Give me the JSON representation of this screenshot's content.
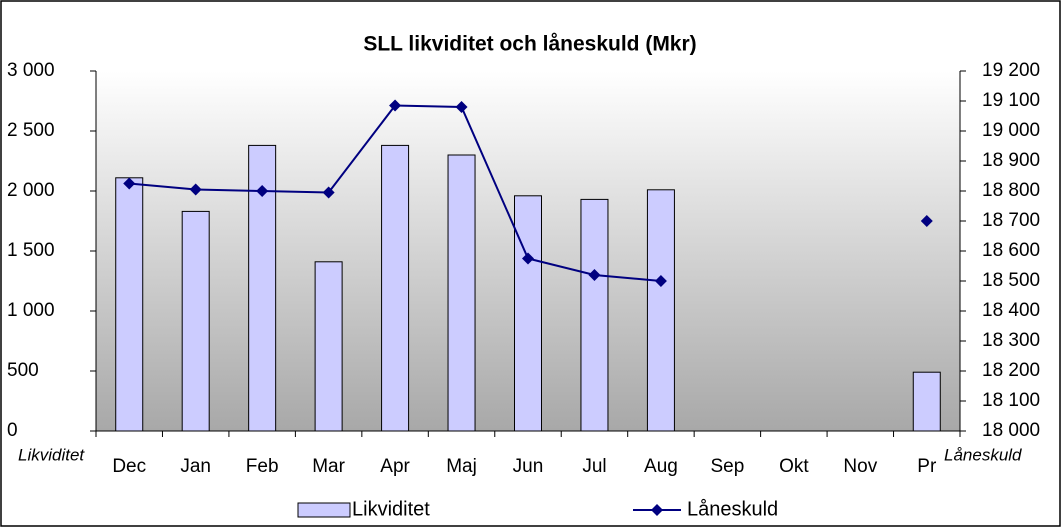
{
  "chart_data": {
    "type": "bar_line",
    "title": "SLL likviditet och låneskuld (Mkr)",
    "y_label": "Likviditet",
    "y2_label": "Låneskuld",
    "categories": [
      "Dec",
      "Jan",
      "Feb",
      "Mar",
      "Apr",
      "Maj",
      "Jun",
      "Jul",
      "Aug",
      "Sep",
      "Okt",
      "Nov",
      "Pr"
    ],
    "series": [
      {
        "name": "Likviditet",
        "type": "bar",
        "color": "#ccccff",
        "values": [
          2110,
          1830,
          2380,
          1410,
          2380,
          2300,
          1960,
          1930,
          2010,
          null,
          null,
          null,
          490
        ]
      },
      {
        "name": "Låneskuld",
        "type": "line",
        "axis": "y2",
        "color": "#000080",
        "values": [
          18825,
          18805,
          18800,
          18795,
          19085,
          19080,
          18575,
          18520,
          18500,
          null,
          null,
          null,
          18700
        ]
      }
    ],
    "ylim": [
      0,
      3000
    ],
    "yticks": [
      0,
      500,
      {
        "value": 1000,
        "label": "1 000"
      },
      {
        "value": 1500,
        "label": "1 500"
      },
      {
        "value": 2000,
        "label": "2 000"
      },
      {
        "value": 2500,
        "label": "2 500"
      },
      {
        "value": 3000,
        "label": "3 000"
      }
    ],
    "y2lim": [
      18000,
      19200
    ],
    "y2ticks": [
      {
        "value": 18000,
        "label": "18 000"
      },
      {
        "value": 18100,
        "label": "18 100"
      },
      {
        "value": 18200,
        "label": "18 200"
      },
      {
        "value": 18300,
        "label": "18 300"
      },
      {
        "value": 18400,
        "label": "18 400"
      },
      {
        "value": 18500,
        "label": "18 500"
      },
      {
        "value": 18600,
        "label": "18 600"
      },
      {
        "value": 18700,
        "label": "18 700"
      },
      {
        "value": 18800,
        "label": "18 800"
      },
      {
        "value": 18900,
        "label": "18 900"
      },
      {
        "value": 19000,
        "label": "19 000"
      },
      {
        "value": 19100,
        "label": "19 100"
      },
      {
        "value": 19200,
        "label": "19 200"
      }
    ],
    "legend": "bottom"
  }
}
